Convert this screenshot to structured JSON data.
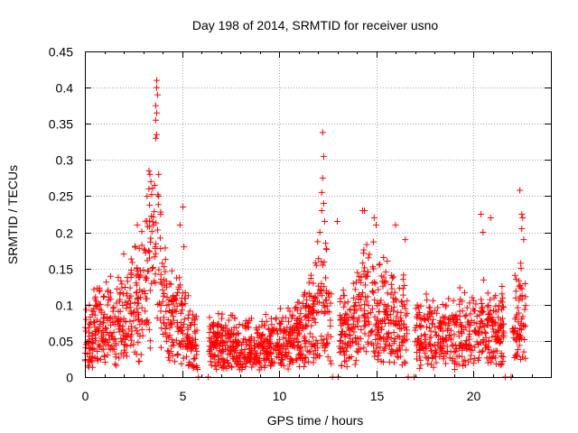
{
  "chart_data": {
    "type": "scatter",
    "title": "Day 198 of 2014, SRMTID for receiver usno",
    "xlabel": "GPS time / hours",
    "ylabel": "SRMTID / TECUs",
    "xlim": [
      0,
      24
    ],
    "ylim": [
      0,
      0.45
    ],
    "x_ticks": [
      0,
      5,
      10,
      15,
      20
    ],
    "x_tick_labels": [
      "0",
      "5",
      "10",
      "15",
      "20"
    ],
    "y_ticks": [
      0,
      0.05,
      0.1,
      0.15,
      0.2,
      0.25,
      0.3,
      0.35,
      0.4,
      0.45
    ],
    "y_tick_labels": [
      "0",
      "0.05",
      "0.1",
      "0.15",
      "0.2",
      "0.25",
      "0.3",
      "0.35",
      "0.4",
      "0.45"
    ],
    "grid": true,
    "marker": "+",
    "color": "#ff0000",
    "envelope": [
      {
        "x": 0.0,
        "y": 0.09
      },
      {
        "x": 0.5,
        "y": 0.12
      },
      {
        "x": 1.0,
        "y": 0.13
      },
      {
        "x": 1.5,
        "y": 0.14
      },
      {
        "x": 2.0,
        "y": 0.15
      },
      {
        "x": 2.5,
        "y": 0.17
      },
      {
        "x": 3.0,
        "y": 0.22
      },
      {
        "x": 3.3,
        "y": 0.27
      },
      {
        "x": 3.7,
        "y": 0.34
      },
      {
        "x": 4.0,
        "y": 0.2
      },
      {
        "x": 4.5,
        "y": 0.16
      },
      {
        "x": 5.0,
        "y": 0.14
      },
      {
        "x": 5.5,
        "y": 0.09
      },
      {
        "x": 6.0,
        "y": 0.08
      },
      {
        "x": 7.0,
        "y": 0.09
      },
      {
        "x": 8.0,
        "y": 0.08
      },
      {
        "x": 9.0,
        "y": 0.08
      },
      {
        "x": 10.0,
        "y": 0.09
      },
      {
        "x": 11.0,
        "y": 0.1
      },
      {
        "x": 11.5,
        "y": 0.13
      },
      {
        "x": 12.0,
        "y": 0.2
      },
      {
        "x": 12.3,
        "y": 0.25
      },
      {
        "x": 12.6,
        "y": 0.14
      },
      {
        "x": 13.0,
        "y": 0.12
      },
      {
        "x": 14.0,
        "y": 0.15
      },
      {
        "x": 14.5,
        "y": 0.19
      },
      {
        "x": 15.0,
        "y": 0.18
      },
      {
        "x": 15.5,
        "y": 0.16
      },
      {
        "x": 16.0,
        "y": 0.14
      },
      {
        "x": 17.0,
        "y": 0.12
      },
      {
        "x": 18.0,
        "y": 0.11
      },
      {
        "x": 19.0,
        "y": 0.11
      },
      {
        "x": 20.0,
        "y": 0.12
      },
      {
        "x": 20.5,
        "y": 0.14
      },
      {
        "x": 21.0,
        "y": 0.12
      },
      {
        "x": 22.0,
        "y": 0.12
      },
      {
        "x": 22.5,
        "y": 0.18
      },
      {
        "x": 22.7,
        "y": 0.12
      }
    ],
    "gaps": [
      [
        5.8,
        6.4
      ],
      [
        12.7,
        13.1
      ],
      [
        16.6,
        17.0
      ],
      [
        21.6,
        22.0
      ]
    ],
    "outliers": [
      {
        "x": 3.7,
        "y": 0.41
      },
      {
        "x": 3.7,
        "y": 0.4
      },
      {
        "x": 3.75,
        "y": 0.39
      },
      {
        "x": 3.65,
        "y": 0.375
      },
      {
        "x": 3.7,
        "y": 0.365
      },
      {
        "x": 3.65,
        "y": 0.355
      },
      {
        "x": 3.7,
        "y": 0.335
      },
      {
        "x": 3.65,
        "y": 0.33
      },
      {
        "x": 3.3,
        "y": 0.285
      },
      {
        "x": 3.35,
        "y": 0.28
      },
      {
        "x": 3.4,
        "y": 0.27
      },
      {
        "x": 3.8,
        "y": 0.28
      },
      {
        "x": 3.6,
        "y": 0.265
      },
      {
        "x": 3.2,
        "y": 0.25
      },
      {
        "x": 3.8,
        "y": 0.25
      },
      {
        "x": 3.9,
        "y": 0.225
      },
      {
        "x": 2.7,
        "y": 0.21
      },
      {
        "x": 2.0,
        "y": 0.17
      },
      {
        "x": 5.05,
        "y": 0.235
      },
      {
        "x": 4.9,
        "y": 0.21
      },
      {
        "x": 5.1,
        "y": 0.18
      },
      {
        "x": 12.25,
        "y": 0.338
      },
      {
        "x": 12.3,
        "y": 0.305
      },
      {
        "x": 12.25,
        "y": 0.275
      },
      {
        "x": 12.2,
        "y": 0.255
      },
      {
        "x": 12.3,
        "y": 0.24
      },
      {
        "x": 12.2,
        "y": 0.23
      },
      {
        "x": 12.35,
        "y": 0.215
      },
      {
        "x": 12.1,
        "y": 0.2
      },
      {
        "x": 12.4,
        "y": 0.185
      },
      {
        "x": 13.0,
        "y": 0.215
      },
      {
        "x": 14.3,
        "y": 0.23
      },
      {
        "x": 14.4,
        "y": 0.23
      },
      {
        "x": 14.9,
        "y": 0.22
      },
      {
        "x": 15.0,
        "y": 0.21
      },
      {
        "x": 16.0,
        "y": 0.21
      },
      {
        "x": 16.5,
        "y": 0.19
      },
      {
        "x": 20.4,
        "y": 0.225
      },
      {
        "x": 20.5,
        "y": 0.2
      },
      {
        "x": 20.9,
        "y": 0.22
      },
      {
        "x": 22.4,
        "y": 0.258
      },
      {
        "x": 22.5,
        "y": 0.225
      },
      {
        "x": 22.55,
        "y": 0.22
      },
      {
        "x": 22.5,
        "y": 0.205
      },
      {
        "x": 22.6,
        "y": 0.19
      }
    ]
  }
}
